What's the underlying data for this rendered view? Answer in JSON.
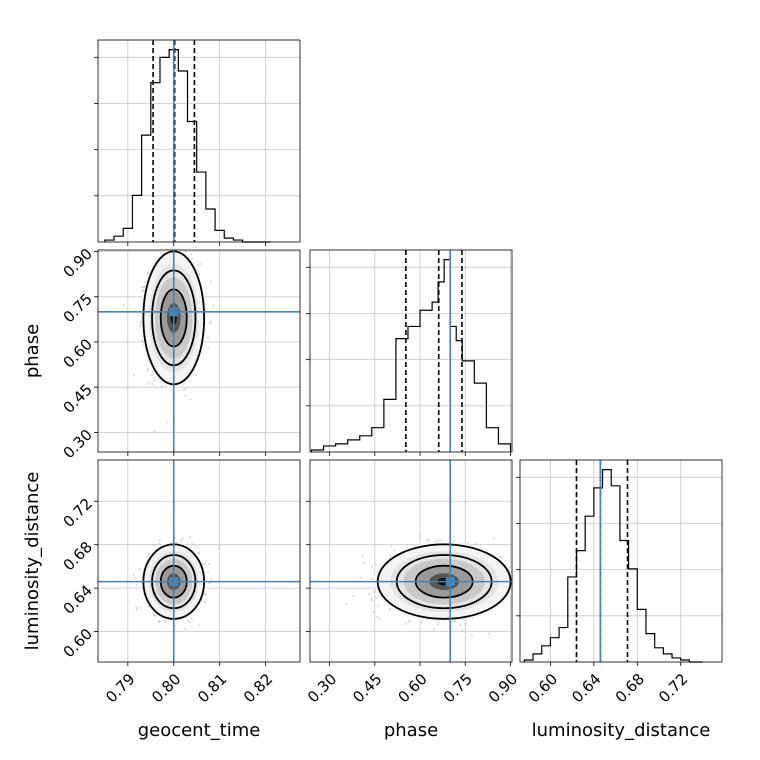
{
  "chart_data": {
    "type": "corner",
    "parameters": [
      "geocent_time",
      "phase",
      "luminosity_distance"
    ],
    "truth": {
      "geocent_time": 0.8,
      "phase": 0.7,
      "luminosity_distance": 0.646
    },
    "quantiles": {
      "geocent_time": [
        0.7955,
        0.8002,
        0.8045
      ],
      "phase": [
        0.553,
        0.662,
        0.739
      ],
      "luminosity_distance": [
        0.624,
        0.646,
        0.671
      ]
    },
    "ranges": {
      "geocent_time": [
        0.7835,
        0.8275
      ],
      "phase": [
        0.235,
        0.905
      ],
      "luminosity_distance": [
        0.572,
        0.758
      ]
    },
    "ticks": {
      "geocent_time": [
        0.79,
        0.8,
        0.81,
        0.82
      ],
      "phase": [
        0.3,
        0.45,
        0.6,
        0.75,
        0.9
      ],
      "luminosity_distance": [
        0.6,
        0.64,
        0.68,
        0.72
      ]
    },
    "tick_labels": {
      "geocent_time": [
        "0.79",
        "0.80",
        "0.81",
        "0.82"
      ],
      "phase": [
        "0.30",
        "0.45",
        "0.60",
        "0.75",
        "0.90"
      ],
      "luminosity_distance": [
        "0.60",
        "0.64",
        "0.68",
        "0.72"
      ]
    },
    "histograms": {
      "geocent_time": {
        "bin_edges": [
          0.785,
          0.787,
          0.789,
          0.791,
          0.793,
          0.795,
          0.797,
          0.799,
          0.801,
          0.803,
          0.805,
          0.807,
          0.809,
          0.811,
          0.813,
          0.815,
          0.817,
          0.819,
          0.821
        ],
        "counts": [
          0.01,
          0.03,
          0.07,
          0.24,
          0.55,
          0.82,
          0.95,
          0.99,
          0.88,
          0.62,
          0.36,
          0.17,
          0.06,
          0.02,
          0.01,
          0,
          0,
          0
        ]
      },
      "phase": {
        "bin_edges": [
          0.24,
          0.28,
          0.32,
          0.36,
          0.4,
          0.44,
          0.48,
          0.52,
          0.56,
          0.6,
          0.64,
          0.66,
          0.68,
          0.7,
          0.72,
          0.74,
          0.78,
          0.82,
          0.86,
          0.9
        ],
        "counts": [
          0.01,
          0.03,
          0.04,
          0.06,
          0.08,
          0.12,
          0.26,
          0.56,
          0.62,
          0.7,
          0.74,
          0.84,
          0.95,
          0.62,
          0.55,
          0.45,
          0.34,
          0.12,
          0.04
        ]
      },
      "luminosity_distance": {
        "bin_edges": [
          0.576,
          0.584,
          0.592,
          0.6,
          0.608,
          0.616,
          0.624,
          0.632,
          0.64,
          0.648,
          0.656,
          0.664,
          0.672,
          0.68,
          0.688,
          0.696,
          0.704,
          0.712,
          0.72,
          0.728,
          0.74
        ],
        "counts": [
          0.01,
          0.04,
          0.08,
          0.12,
          0.17,
          0.42,
          0.55,
          0.72,
          0.86,
          0.95,
          0.87,
          0.6,
          0.46,
          0.26,
          0.14,
          0.07,
          0.04,
          0.02,
          0.01,
          0
        ]
      }
    },
    "posterior_cloud": {
      "geocent_time": {
        "mean": 0.8,
        "sd": 0.0027
      },
      "phase": {
        "mean": 0.68,
        "sd": 0.09
      },
      "luminosity_distance": {
        "mean": 0.646,
        "sd": 0.014
      }
    },
    "grid": true
  }
}
